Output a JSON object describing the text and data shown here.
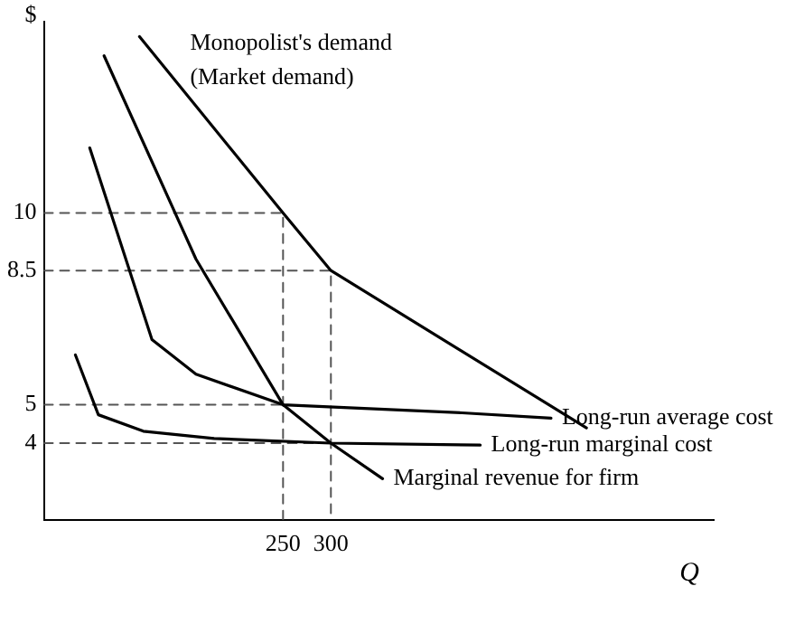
{
  "chart_data": {
    "type": "line",
    "ylabel": "$",
    "xlabel": "Q",
    "xlim": [
      0,
      700
    ],
    "ylim": [
      2,
      15
    ],
    "xticks": [
      250,
      300
    ],
    "yticks": [
      4,
      5,
      8.5,
      10
    ],
    "grid": false,
    "legend": false,
    "marker": "none",
    "line_style": "solid",
    "series": [
      {
        "color": "#000000",
        "x": [
          100,
          250,
          300,
          567
        ],
        "values": [
          14.6,
          10,
          8.5,
          4.4
        ]
      },
      {
        "color": "#000000",
        "x": [
          63,
          159,
          250,
          300,
          354
        ],
        "values": [
          14.1,
          8.8,
          5,
          4,
          3.07
        ]
      },
      {
        "color": "#000000",
        "x": [
          48,
          113,
          159,
          250,
          437,
          530
        ],
        "values": [
          11.7,
          6.7,
          5.8,
          5,
          4.79,
          4.65
        ]
      },
      {
        "color": "#000000",
        "x": [
          33,
          57,
          104,
          178,
          300,
          456
        ],
        "values": [
          6.3,
          4.74,
          4.31,
          4.12,
          4,
          3.95
        ]
      },
      {
        "color": "#555555",
        "line_style": "dashed",
        "x": [
          0,
          250,
          250
        ],
        "values": [
          10,
          10,
          2
        ]
      },
      {
        "color": "#555555",
        "line_style": "dashed",
        "x": [
          0,
          300,
          300
        ],
        "values": [
          8.5,
          8.5,
          2
        ]
      },
      {
        "color": "#555555",
        "line_style": "dashed",
        "x": [
          0,
          250
        ],
        "values": [
          5,
          5
        ]
      },
      {
        "color": "#555555",
        "line_style": "dashed",
        "x": [
          0,
          300
        ],
        "values": [
          4,
          4
        ]
      }
    ],
    "annotations": [
      {
        "text": "Monopolist's demand\n(Market demand)",
        "x": 100,
        "y": 14.6
      },
      {
        "text": "Long-run average cost",
        "x": 530,
        "y": 4.65
      },
      {
        "text": "Long-run marginal cost",
        "x": 456,
        "y": 3.95
      },
      {
        "text": "Marginal revenue for firm",
        "x": 354,
        "y": 3.07
      }
    ]
  }
}
